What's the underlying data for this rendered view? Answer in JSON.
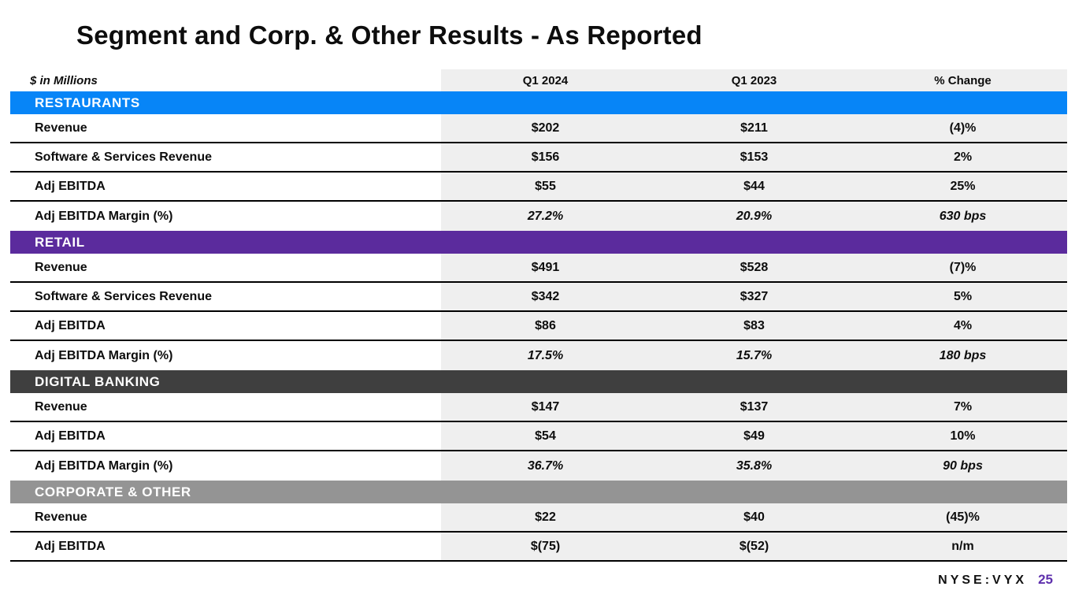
{
  "title": "Segment and Corp. & Other Results - As Reported",
  "table": {
    "unit_label": "$ in Millions",
    "columns": [
      "Q1 2024",
      "Q1 2023",
      "% Change"
    ],
    "value_bg_color": "#efefef",
    "sections": [
      {
        "name": "RESTAURANTS",
        "color": "#0785f7",
        "rows": [
          {
            "label": "Revenue",
            "values": [
              "$202",
              "$211",
              "(4)%"
            ],
            "italic": false
          },
          {
            "label": "Software & Services Revenue",
            "values": [
              "$156",
              "$153",
              "2%"
            ],
            "italic": false
          },
          {
            "label": "Adj EBITDA",
            "values": [
              "$55",
              "$44",
              "25%"
            ],
            "italic": false
          },
          {
            "label": "Adj EBITDA Margin (%)",
            "values": [
              "27.2%",
              "20.9%",
              "630 bps"
            ],
            "italic": true
          }
        ]
      },
      {
        "name": "RETAIL",
        "color": "#5b2b9d",
        "rows": [
          {
            "label": "Revenue",
            "values": [
              "$491",
              "$528",
              "(7)%"
            ],
            "italic": false
          },
          {
            "label": "Software & Services Revenue",
            "values": [
              "$342",
              "$327",
              "5%"
            ],
            "italic": false
          },
          {
            "label": "Adj EBITDA",
            "values": [
              "$86",
              "$83",
              "4%"
            ],
            "italic": false
          },
          {
            "label": "Adj EBITDA Margin (%)",
            "values": [
              "17.5%",
              "15.7%",
              "180 bps"
            ],
            "italic": true
          }
        ]
      },
      {
        "name": "DIGITAL BANKING",
        "color": "#3f3f3f",
        "rows": [
          {
            "label": "Revenue",
            "values": [
              "$147",
              "$137",
              "7%"
            ],
            "italic": false
          },
          {
            "label": "Adj EBITDA",
            "values": [
              "$54",
              "$49",
              "10%"
            ],
            "italic": false
          },
          {
            "label": "Adj EBITDA Margin (%)",
            "values": [
              "36.7%",
              "35.8%",
              "90 bps"
            ],
            "italic": true
          }
        ]
      },
      {
        "name": "CORPORATE & OTHER",
        "color": "#949494",
        "rows": [
          {
            "label": "Revenue",
            "values": [
              "$22",
              "$40",
              "(45)%"
            ],
            "italic": false
          },
          {
            "label": "Adj EBITDA",
            "values": [
              "$(75)",
              "$(52)",
              "n/m"
            ],
            "italic": false
          }
        ]
      }
    ]
  },
  "footer": {
    "ticker": "NYSE:VYX",
    "page": "25",
    "page_color": "#5f31ad"
  }
}
